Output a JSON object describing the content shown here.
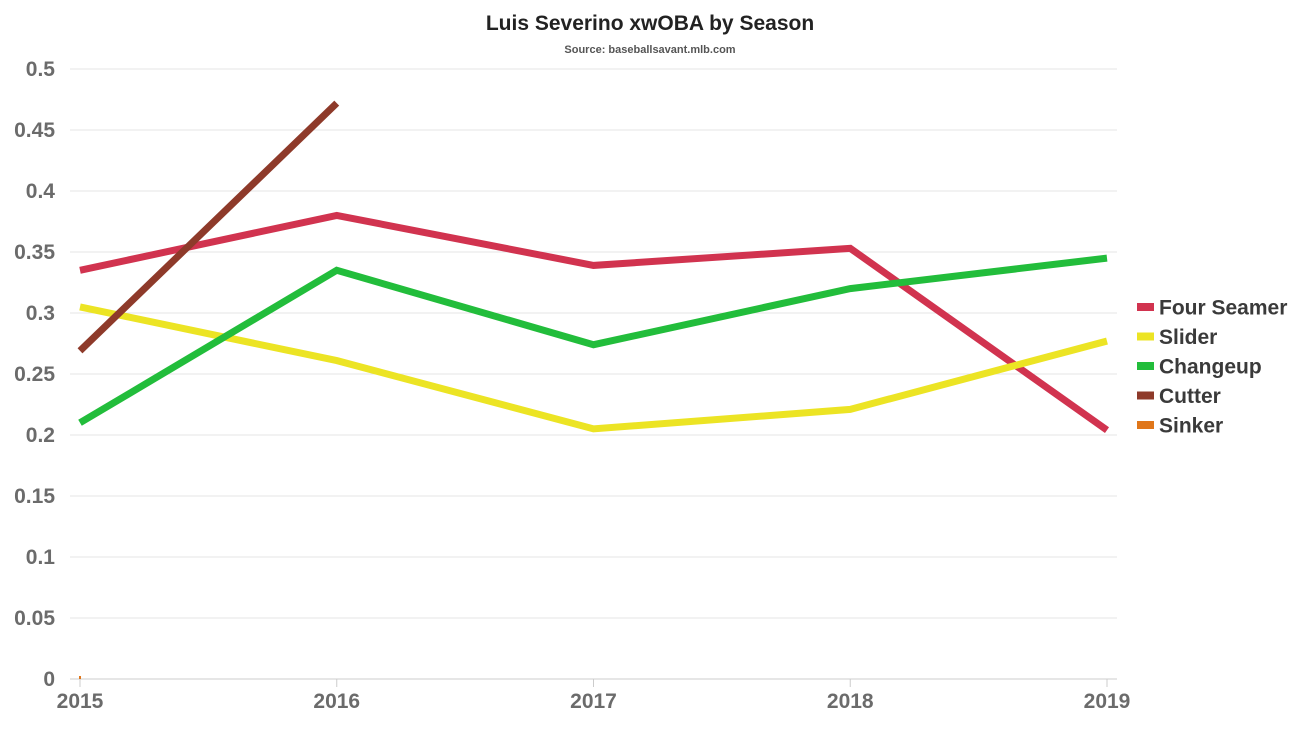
{
  "chart_data": {
    "type": "line",
    "title": "Luis Severino xwOBA by Season",
    "subtitle": "Source: baseballsavant.mlb.com",
    "xlabel": "",
    "ylabel": "",
    "x": [
      "2015",
      "2016",
      "2017",
      "2018",
      "2019"
    ],
    "ylim": [
      0,
      0.5
    ],
    "yticks": [
      "0",
      "0.05",
      "0.1",
      "0.15",
      "0.2",
      "0.25",
      "0.3",
      "0.35",
      "0.4",
      "0.45",
      "0.5"
    ],
    "grid": true,
    "legend_position": "right",
    "series": [
      {
        "name": "Four Seamer",
        "color": "#d1334f",
        "values": [
          0.335,
          0.38,
          0.339,
          0.353,
          0.204
        ]
      },
      {
        "name": "Slider",
        "color": "#ece424",
        "values": [
          0.305,
          0.261,
          0.205,
          0.221,
          0.277
        ]
      },
      {
        "name": "Changeup",
        "color": "#22bd3b",
        "values": [
          0.21,
          0.335,
          0.274,
          0.32,
          0.345
        ]
      },
      {
        "name": "Cutter",
        "color": "#8e3a2a",
        "values": [
          0.269,
          0.472,
          null,
          null,
          null
        ]
      },
      {
        "name": "Sinker",
        "color": "#e0761a",
        "values": [
          0.0,
          null,
          null,
          null,
          null
        ]
      }
    ]
  }
}
